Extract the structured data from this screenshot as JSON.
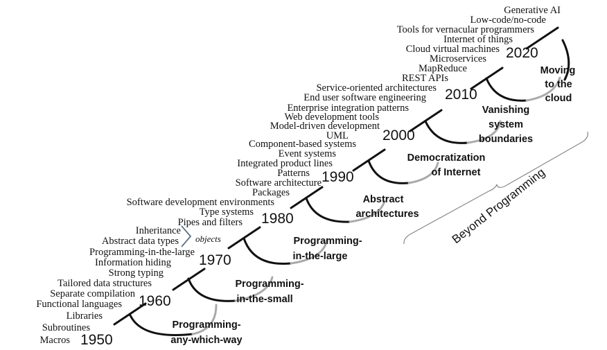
{
  "years": [
    "1950",
    "1960",
    "1970",
    "1980",
    "1990",
    "2000",
    "2010",
    "2020"
  ],
  "eras": [
    [
      "Programming-",
      "any-which-way"
    ],
    [
      "Programming-",
      "in-the-small"
    ],
    [
      "Programming-",
      "in-the-large"
    ],
    [
      "Abstract",
      "architectures"
    ],
    [
      "Democratization",
      "of Internet"
    ],
    [
      "Vanishing",
      "system",
      "boundaries"
    ],
    [
      "Moving",
      "to the",
      "cloud"
    ]
  ],
  "topics": [
    "Macros",
    "Subroutines",
    "Libraries",
    "Functional languages",
    "Separate compilation",
    "Tailored data structures",
    "Strong typing",
    "Information hiding",
    "Programming-in-the-large",
    "Abstract data types",
    "Inheritance",
    "Pipes and filters",
    "Type systems",
    "Software development environments",
    "Packages",
    "Software architecture",
    "Patterns",
    "Integrated product lines",
    "Event systems",
    "Component-based systems",
    "UML",
    "Model-driven development",
    "Web development tools",
    "Enterprise integration patterns",
    "End user software engineering",
    "Service-oriented architectures",
    "REST APIs",
    "MapReduce",
    "Microservices",
    "Cloud virtual machines",
    "Internet of things",
    "Tools for vernacular programmers",
    "Low-code/no-code",
    "Generative AI"
  ],
  "objects_label": "objects",
  "beyond_label": "Beyond Programming"
}
